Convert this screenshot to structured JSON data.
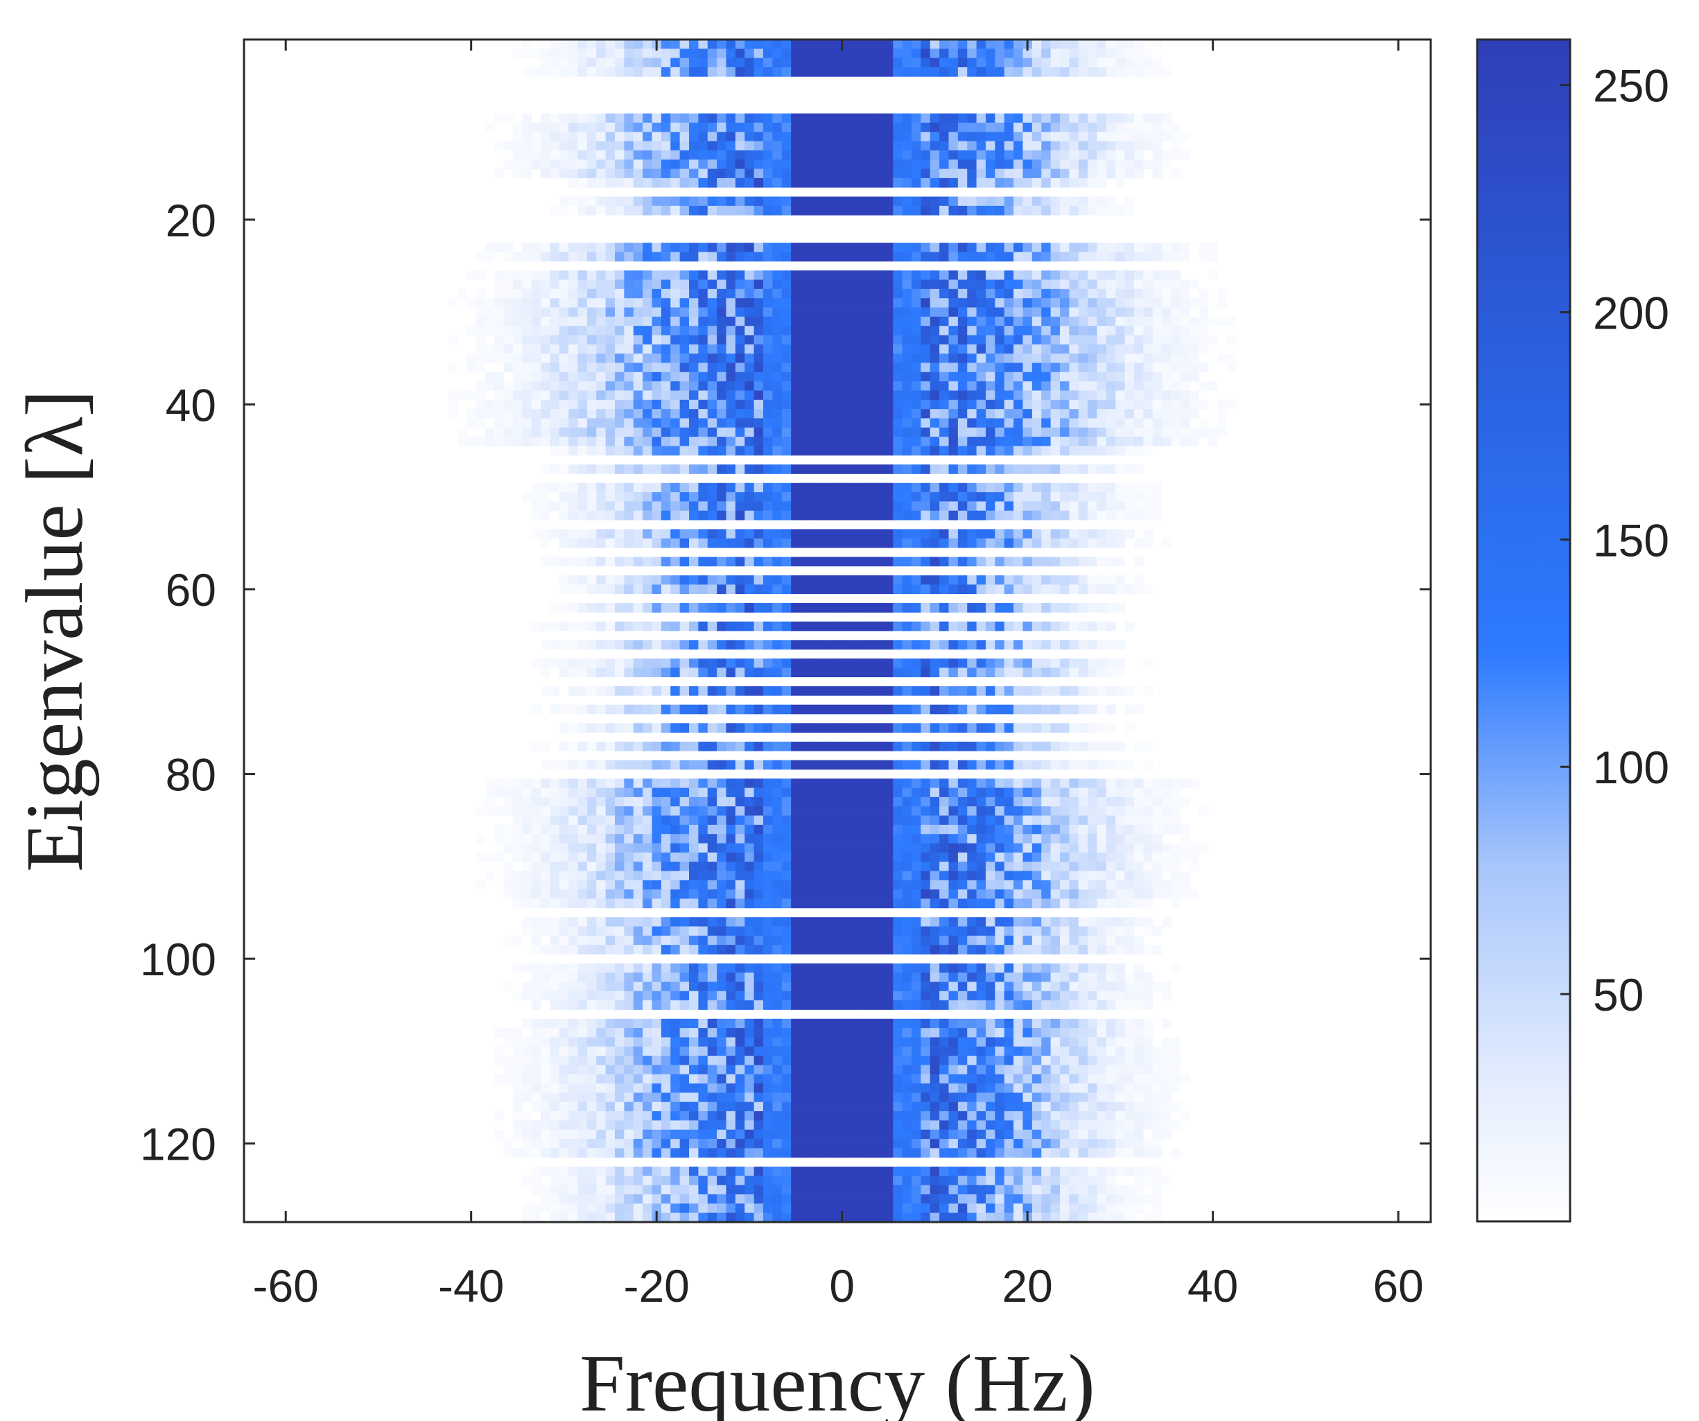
{
  "chart_data": {
    "type": "heatmap",
    "title": "",
    "xlabel": "Frequency (Hz)",
    "ylabel": "Eigenvalue [λ]",
    "xlim": [
      -64.5,
      63.5
    ],
    "ylim": [
      0.5,
      128.5
    ],
    "y_reversed": true,
    "x_ticks": [
      -60,
      -40,
      -20,
      0,
      20,
      40,
      60
    ],
    "y_ticks": [
      20,
      40,
      60,
      80,
      100,
      120
    ],
    "x_tick_labels": [
      "-60",
      "-40",
      "-20",
      "0",
      "20",
      "40",
      "60"
    ],
    "y_tick_labels": [
      "20",
      "40",
      "60",
      "80",
      "100",
      "120"
    ],
    "n_rows": 128,
    "n_cols": 128,
    "colorbar": {
      "min": 0,
      "max": 260,
      "ticks": [
        50,
        100,
        150,
        200,
        250
      ],
      "tick_labels": [
        "50",
        "100",
        "150",
        "200",
        "250"
      ],
      "colormap": [
        "#ffffff",
        "#a8c6fb",
        "#2f7bff",
        "#2f3fb7"
      ]
    },
    "peak_band": {
      "description_values": "saturated core centred on 0 Hz",
      "core_half_width_hz": 5,
      "core_value": 255,
      "shoulder_half_width_hz": 8,
      "shoulder_value": 130
    },
    "row_spread_hz": {
      "rows_1_4": 18,
      "rows_9_15": 20,
      "rows_16_19": 16,
      "rows_20_28": 22,
      "rows_29_44": 23,
      "rows_45_55": 18,
      "rows_56_79": 17,
      "rows_80_93": 21,
      "rows_94_105": 19,
      "rows_106_121": 20,
      "rows_122_128": 18
    },
    "empty_rows": [
      5,
      6,
      7,
      8,
      17,
      20,
      21,
      22,
      25,
      46,
      48,
      53,
      56,
      58,
      61,
      63,
      65,
      67,
      70,
      72,
      74,
      76,
      78,
      80,
      95,
      100,
      106,
      122
    ]
  }
}
